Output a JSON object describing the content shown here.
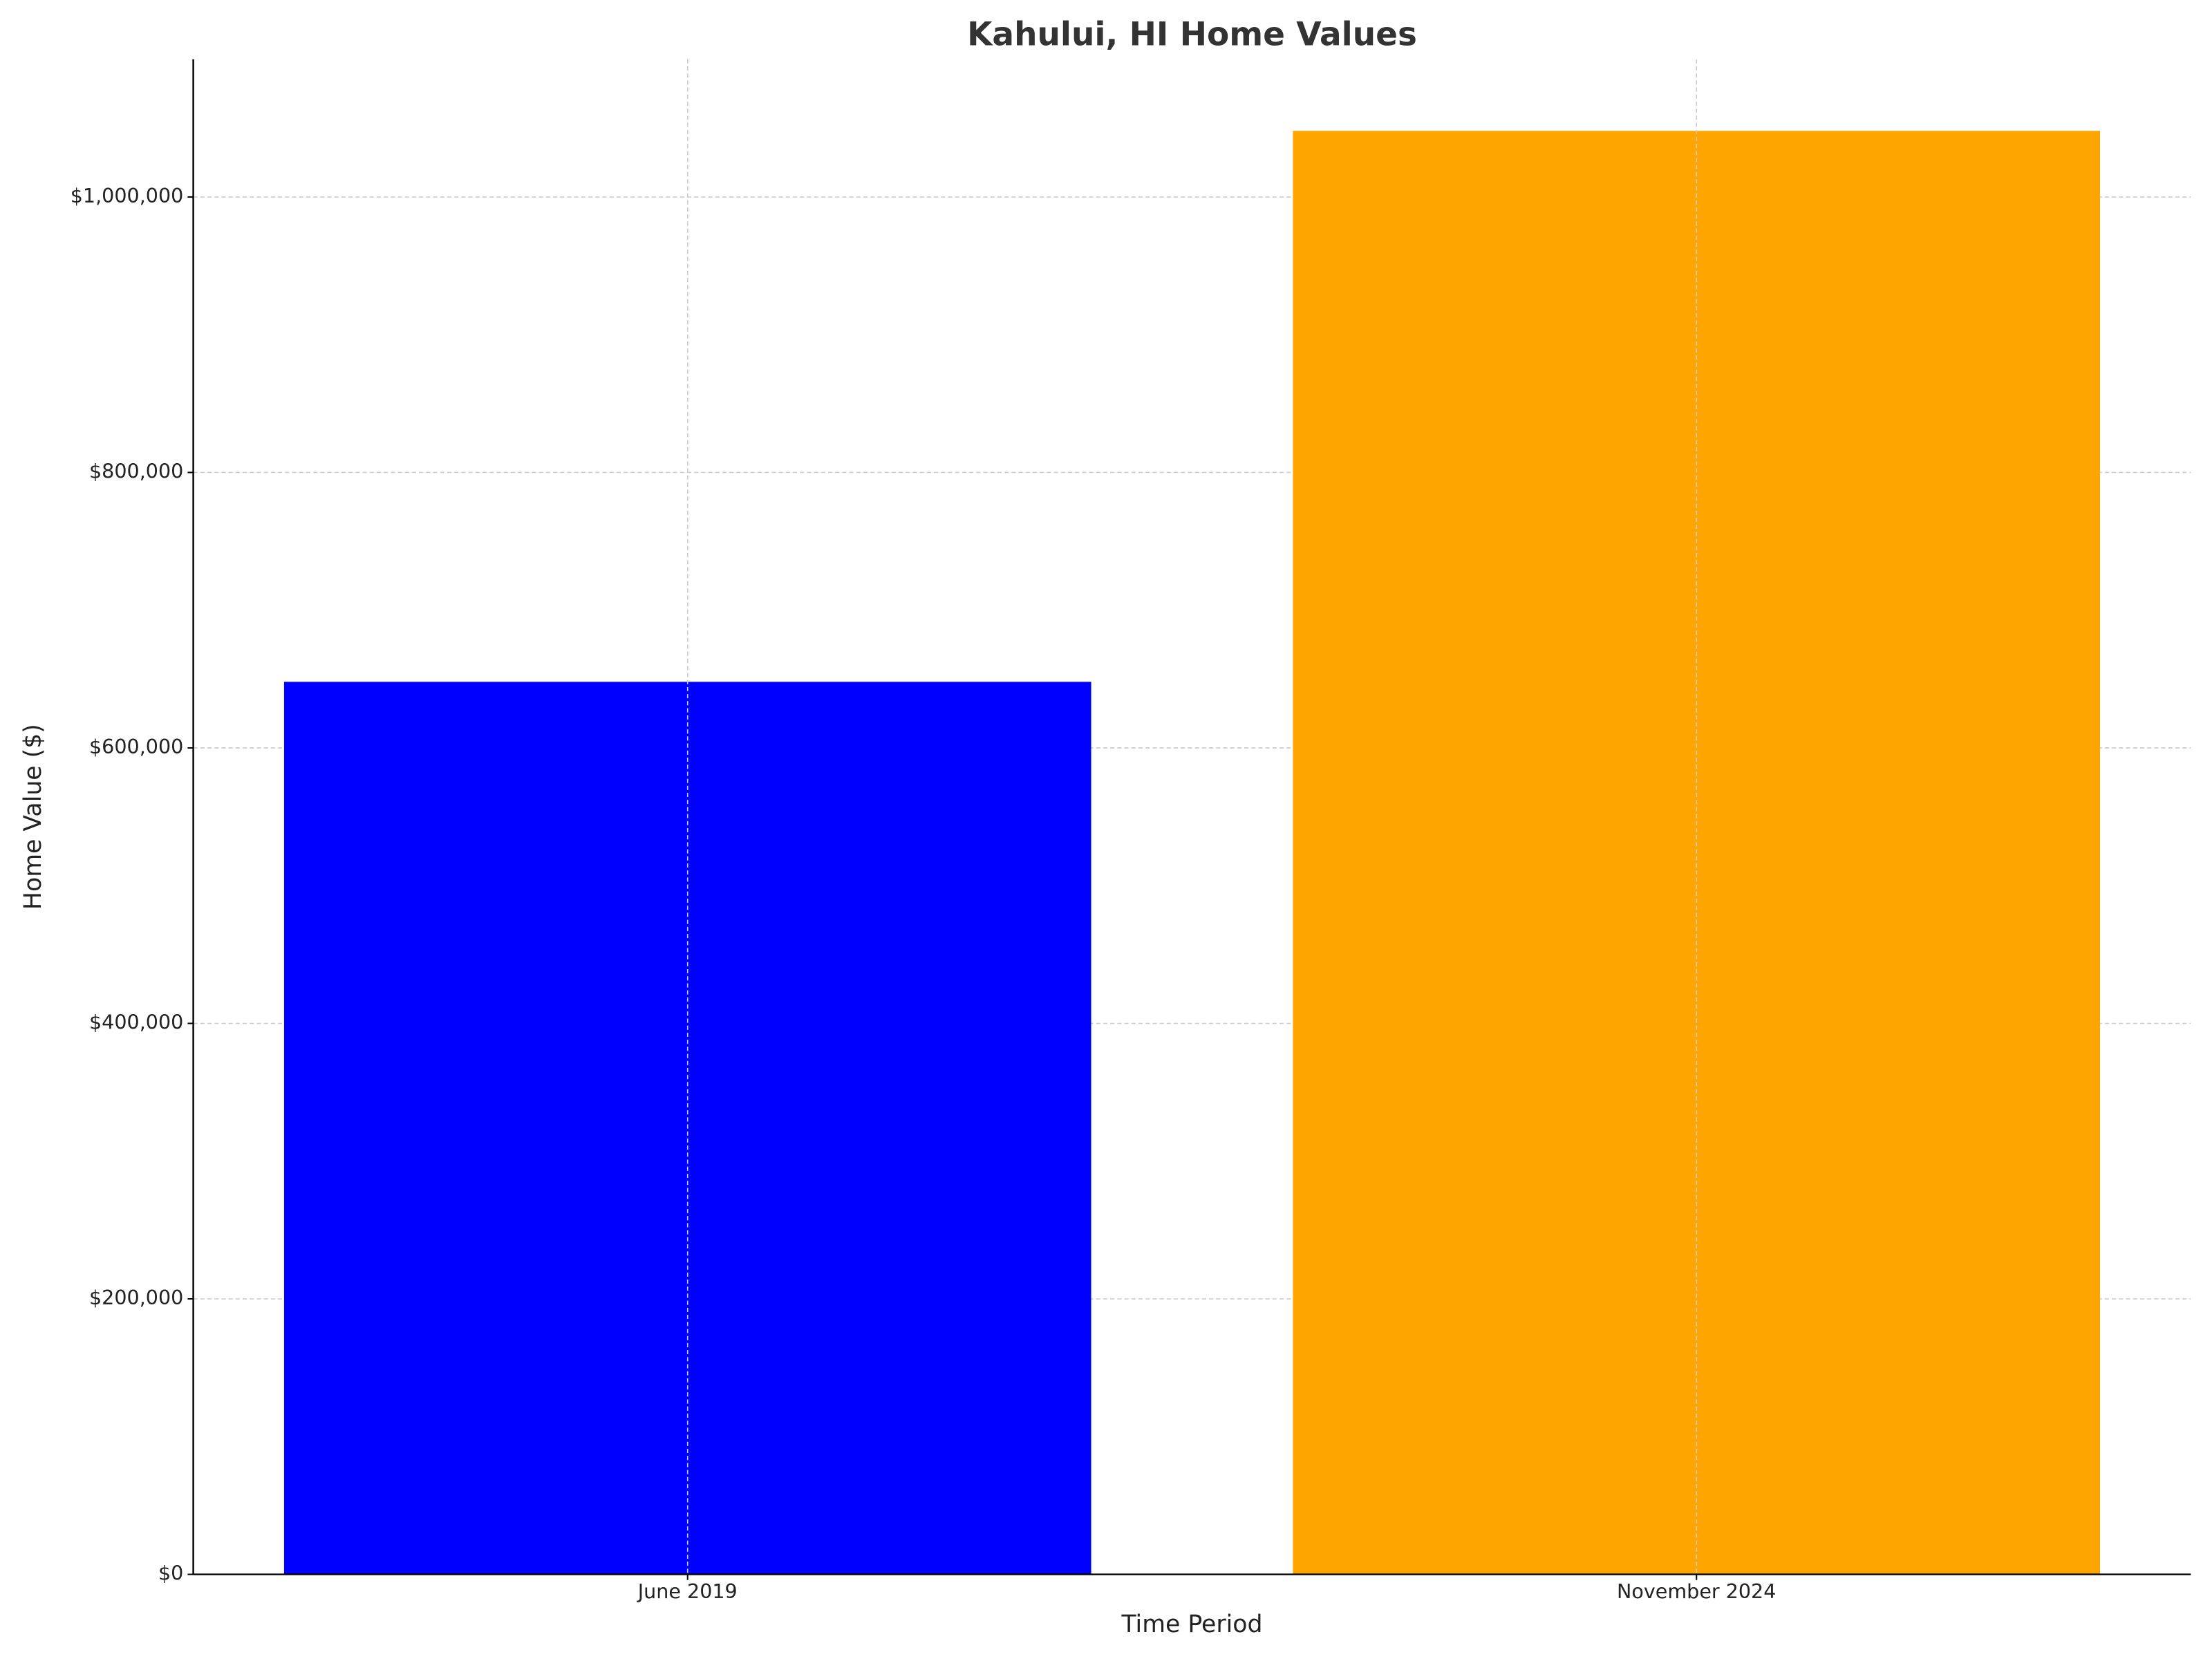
{
  "chart_data": {
    "type": "bar",
    "title": "Kahului, HI Home Values",
    "x_label": "Time Period",
    "y_label": "Home Value ($)",
    "categories": [
      "June 2019",
      "November 2024"
    ],
    "values": [
      648000,
      1048000
    ],
    "colors": [
      "#0000ff",
      "#ffa500"
    ],
    "ylim": [
      0,
      1100000
    ],
    "yticks": [
      {
        "value": 0,
        "label": "$0"
      },
      {
        "value": 200000,
        "label": "$200,000"
      },
      {
        "value": 400000,
        "label": "$400,000"
      },
      {
        "value": 600000,
        "label": "$600,000"
      },
      {
        "value": 800000,
        "label": "$800,000"
      },
      {
        "value": 1000000,
        "label": "$1,000,000"
      }
    ],
    "grid": true
  }
}
